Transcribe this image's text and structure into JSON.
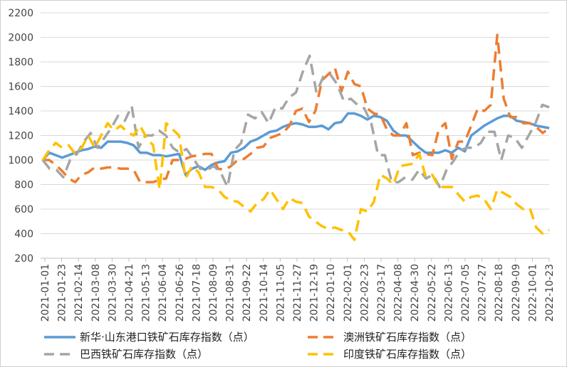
{
  "chart_data": {
    "type": "line",
    "title": "",
    "xlabel": "",
    "ylabel": "",
    "ylim": [
      200,
      2200
    ],
    "yticks": [
      200,
      400,
      600,
      800,
      1000,
      1200,
      1400,
      1600,
      1800,
      2000,
      2200
    ],
    "x_tick_labels": [
      "2021-01-01",
      "2021-01-23",
      "2021-02-14",
      "2021-03-08",
      "2021-03-30",
      "2021-04-21",
      "2021-05-13",
      "2021-06-04",
      "2021-06-26",
      "2021-07-18",
      "2021-08-09",
      "2021-08-31",
      "2021-09-22",
      "2021-10-14",
      "2021-11-05",
      "2021-11-27",
      "2021-12-19",
      "2022-01-10",
      "2022-02-01",
      "2022-02-23",
      "2022-03-17",
      "2022-04-08",
      "2022-04-30",
      "2022-05-22",
      "2022-06-13",
      "2022-07-05",
      "2022-07-27",
      "2022-08-18",
      "2022-09-09",
      "2022-10-01",
      "2022-10-23"
    ],
    "grid": "horizontal",
    "legend_position": "bottom",
    "series": [
      {
        "name": "新华·山东港口铁矿石库存指数（点）",
        "color": "#5B9BD5",
        "dash": "solid",
        "values": [
          1000,
          1060,
          1040,
          1020,
          1040,
          1060,
          1080,
          1090,
          1110,
          1100,
          1150,
          1150,
          1150,
          1140,
          1120,
          1060,
          1060,
          1040,
          1040,
          1030,
          1040,
          1050,
          880,
          930,
          950,
          920,
          960,
          980,
          990,
          1060,
          1070,
          1100,
          1150,
          1170,
          1200,
          1230,
          1240,
          1270,
          1290,
          1300,
          1290,
          1270,
          1270,
          1280,
          1250,
          1300,
          1310,
          1380,
          1380,
          1360,
          1330,
          1360,
          1350,
          1320,
          1240,
          1200,
          1200,
          1150,
          1100,
          1060,
          1060,
          1060,
          1080,
          1060,
          1100,
          1070,
          1200,
          1240,
          1280,
          1310,
          1340,
          1360,
          1360,
          1320,
          1310,
          1300,
          1280,
          1270,
          1260
        ]
      },
      {
        "name": "澳洲铁矿石库存指数（点）",
        "color": "#ED7D31",
        "dash": "dashed",
        "values": [
          1000,
          1000,
          960,
          910,
          850,
          820,
          880,
          900,
          940,
          930,
          940,
          940,
          930,
          930,
          920,
          820,
          820,
          820,
          840,
          850,
          1000,
          1000,
          1010,
          1030,
          1040,
          1050,
          1050,
          930,
          920,
          950,
          1000,
          1010,
          1050,
          1100,
          1110,
          1180,
          1200,
          1220,
          1280,
          1400,
          1420,
          1310,
          1400,
          1650,
          1700,
          1750,
          1560,
          1720,
          1620,
          1600,
          1420,
          1380,
          1370,
          1250,
          1200,
          1200,
          1300,
          1040,
          1060,
          1050,
          1040,
          1250,
          1300,
          1010,
          1150,
          1150,
          1280,
          1420,
          1400,
          1450,
          2020,
          1500,
          1350,
          1350,
          1300,
          1300,
          1270,
          1220,
          1260
        ]
      },
      {
        "name": "巴西铁矿石库存指数（点）",
        "color": "#A5A5A5",
        "dash": "dashed",
        "values": [
          1000,
          930,
          920,
          860,
          1000,
          1050,
          1150,
          1220,
          1100,
          1180,
          1260,
          1360,
          1320,
          1440,
          1100,
          1200,
          1200,
          1240,
          1200,
          1100,
          1060,
          1090,
          1010,
          930,
          920,
          950,
          900,
          780,
          1080,
          1140,
          1370,
          1340,
          1390,
          1300,
          1430,
          1420,
          1510,
          1550,
          1720,
          1850,
          1550,
          1680,
          1700,
          1620,
          1480,
          1500,
          1450,
          1420,
          1300,
          1040,
          1040,
          820,
          820,
          860,
          840,
          920,
          850,
          880,
          780,
          920,
          990,
          1080,
          1100,
          1100,
          1140,
          1230,
          1230,
          1000,
          1200,
          1180,
          1100,
          1200,
          1300,
          1450,
          1430
        ]
      },
      {
        "name": "印度铁矿石库存指数（点）",
        "color": "#FFC000",
        "dash": "dashed",
        "values": [
          1000,
          1080,
          1140,
          1100,
          1120,
          1050,
          1100,
          1200,
          1100,
          1200,
          1300,
          1240,
          1280,
          1230,
          1200,
          1280,
          1180,
          1120,
          760,
          1300,
          1250,
          1200,
          850,
          950,
          900,
          780,
          780,
          760,
          700,
          670,
          660,
          620,
          580,
          650,
          680,
          760,
          680,
          600,
          690,
          660,
          650,
          540,
          500,
          460,
          440,
          450,
          430,
          420,
          350,
          600,
          580,
          660,
          880,
          850,
          800,
          950,
          960,
          970,
          1050,
          860,
          880,
          780,
          780,
          780,
          720,
          660,
          700,
          710,
          680,
          600,
          760,
          730,
          700,
          640,
          600,
          610,
          450,
          400,
          430
        ]
      }
    ]
  }
}
